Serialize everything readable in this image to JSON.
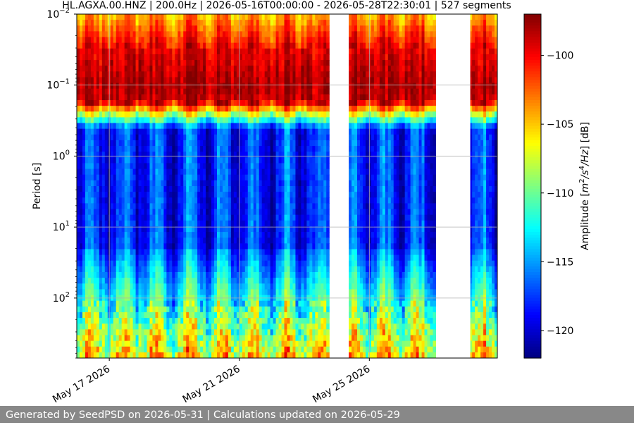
{
  "chart_data": {
    "type": "heatmap",
    "title": "HL.AGXA.00.HNZ | 200.0Hz | 2026-05-16T00:00:00 - 2026-05-28T22:30:01 | 527 segments",
    "xlabel": "",
    "ylabel": "Period [s]",
    "y_scale": "log",
    "y_inverted": true,
    "ylim": [
      0.01,
      700
    ],
    "y_ticks": [
      {
        "value": 0.01,
        "base": "10",
        "exp": "−2"
      },
      {
        "value": 0.1,
        "base": "10",
        "exp": "−1"
      },
      {
        "value": 1,
        "base": "10",
        "exp": "0"
      },
      {
        "value": 10,
        "base": "10",
        "exp": "1"
      },
      {
        "value": 100,
        "base": "10",
        "exp": "2"
      }
    ],
    "xlim": [
      "2026-05-16T00:00:00",
      "2026-05-28T22:30:01"
    ],
    "x_ticks": [
      {
        "date": "2026-05-17",
        "label": "May 17 2026"
      },
      {
        "date": "2026-05-21",
        "label": "May 21 2026"
      },
      {
        "date": "2026-05-25",
        "label": "May 25 2026"
      }
    ],
    "data_gaps": [
      {
        "start": "2026-05-23T19:00:00",
        "end": "2026-05-24T08:30:00"
      },
      {
        "start": "2026-05-27T01:30:00",
        "end": "2026-05-28T02:30:00"
      }
    ],
    "grid": true,
    "colormap": "jet",
    "colorbar": {
      "label": "Amplitude [m²/s⁴/Hz] [dB]",
      "range": [
        -122,
        -97
      ],
      "ticks": [
        -120,
        -115,
        -110,
        -105,
        -100
      ]
    },
    "description": "Daily-modulated PSD spectrogram: strongest energy (~-97 dB) in the 0.06–0.2 s period band; quietest (~-121 dB) between 0.5 and 20 s; noisier at long periods (>100 s); daytime bands brighter."
  },
  "footer": {
    "text": "Generated by SeedPSD on 2026-05-31 | Calculations updated on 2026-05-29"
  }
}
